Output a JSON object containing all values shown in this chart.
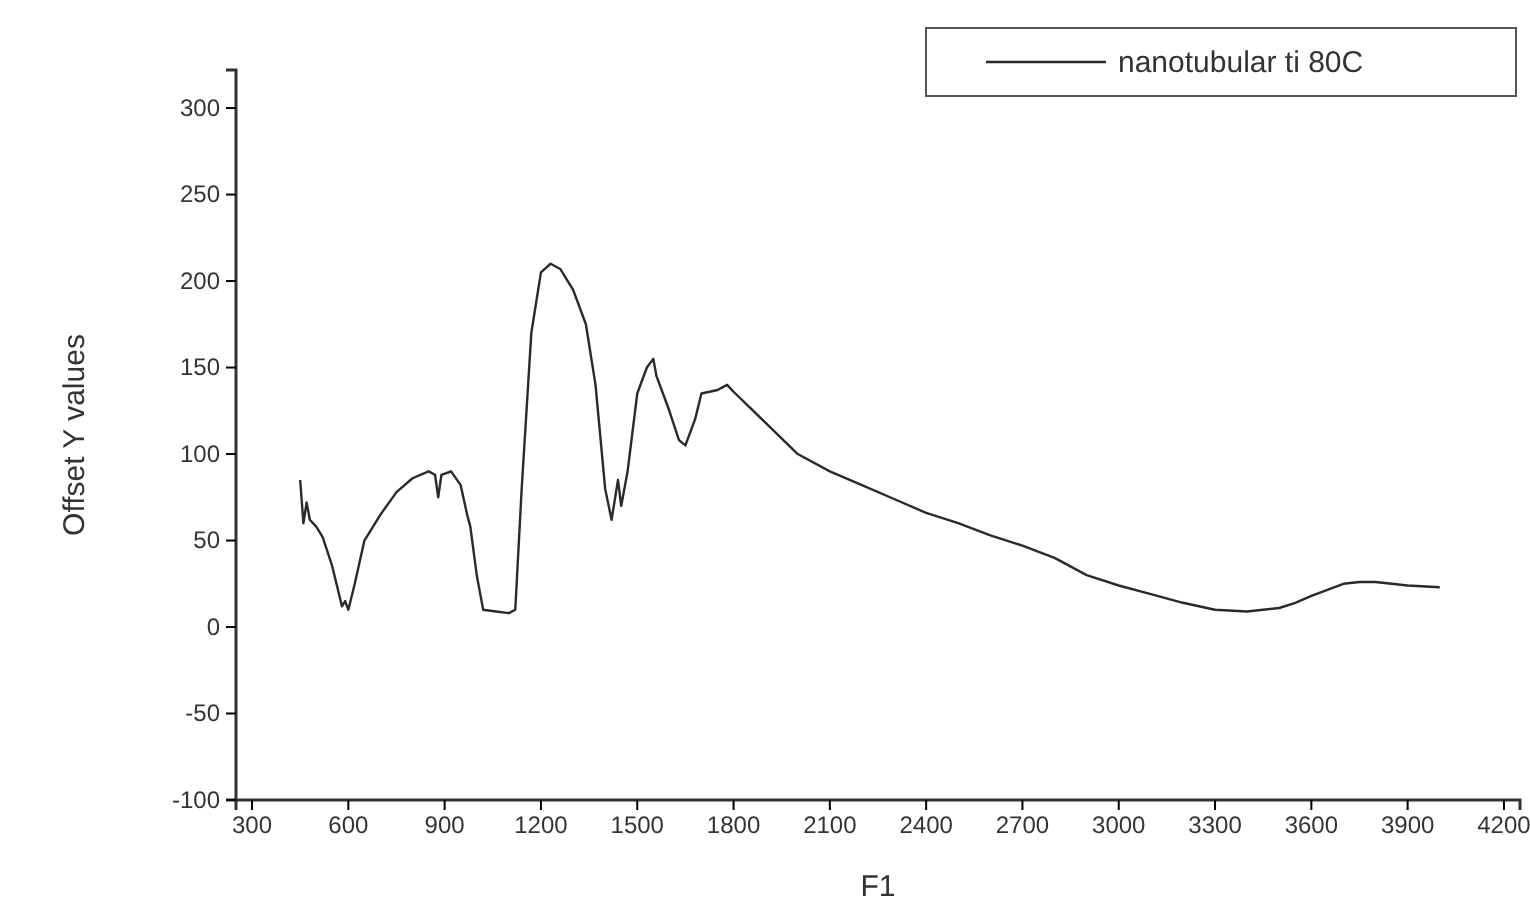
{
  "chart_data": {
    "type": "line",
    "xlabel": "F1",
    "ylabel": "Offset Y values",
    "legend": "top right",
    "grid": false,
    "xlim": [
      250,
      4250
    ],
    "ylim": [
      -100,
      322
    ],
    "xticks": [
      300,
      600,
      900,
      1200,
      1500,
      1800,
      2100,
      2400,
      2700,
      3000,
      3300,
      3600,
      3900,
      4200
    ],
    "yticks": [
      -100,
      -50,
      0,
      50,
      100,
      150,
      200,
      250,
      300
    ],
    "series": [
      {
        "name": "nanotubular ti 80C",
        "color": "#2a2a2a",
        "x": [
          450,
          460,
          470,
          480,
          500,
          520,
          550,
          580,
          590,
          600,
          620,
          650,
          700,
          750,
          800,
          850,
          870,
          880,
          890,
          920,
          950,
          970,
          980,
          1000,
          1020,
          1060,
          1100,
          1120,
          1140,
          1170,
          1200,
          1230,
          1260,
          1300,
          1340,
          1370,
          1400,
          1420,
          1440,
          1450,
          1470,
          1500,
          1530,
          1550,
          1560,
          1600,
          1630,
          1650,
          1680,
          1700,
          1750,
          1780,
          1800,
          1900,
          2000,
          2100,
          2200,
          2300,
          2400,
          2500,
          2600,
          2700,
          2800,
          2900,
          3000,
          3100,
          3200,
          3300,
          3400,
          3500,
          3550,
          3600,
          3700,
          3750,
          3800,
          3900,
          4000
        ],
        "values": [
          85,
          60,
          72,
          62,
          58,
          52,
          35,
          12,
          15,
          10,
          25,
          50,
          65,
          78,
          86,
          90,
          88,
          75,
          88,
          90,
          82,
          65,
          58,
          30,
          10,
          9,
          8,
          10,
          80,
          170,
          205,
          210,
          207,
          195,
          175,
          140,
          80,
          62,
          85,
          70,
          90,
          135,
          150,
          155,
          145,
          125,
          108,
          105,
          120,
          135,
          137,
          140,
          136,
          118,
          100,
          90,
          82,
          74,
          66,
          60,
          53,
          47,
          40,
          30,
          24,
          19,
          14,
          10,
          9,
          11,
          14,
          18,
          25,
          26,
          26,
          24,
          23
        ]
      }
    ]
  }
}
